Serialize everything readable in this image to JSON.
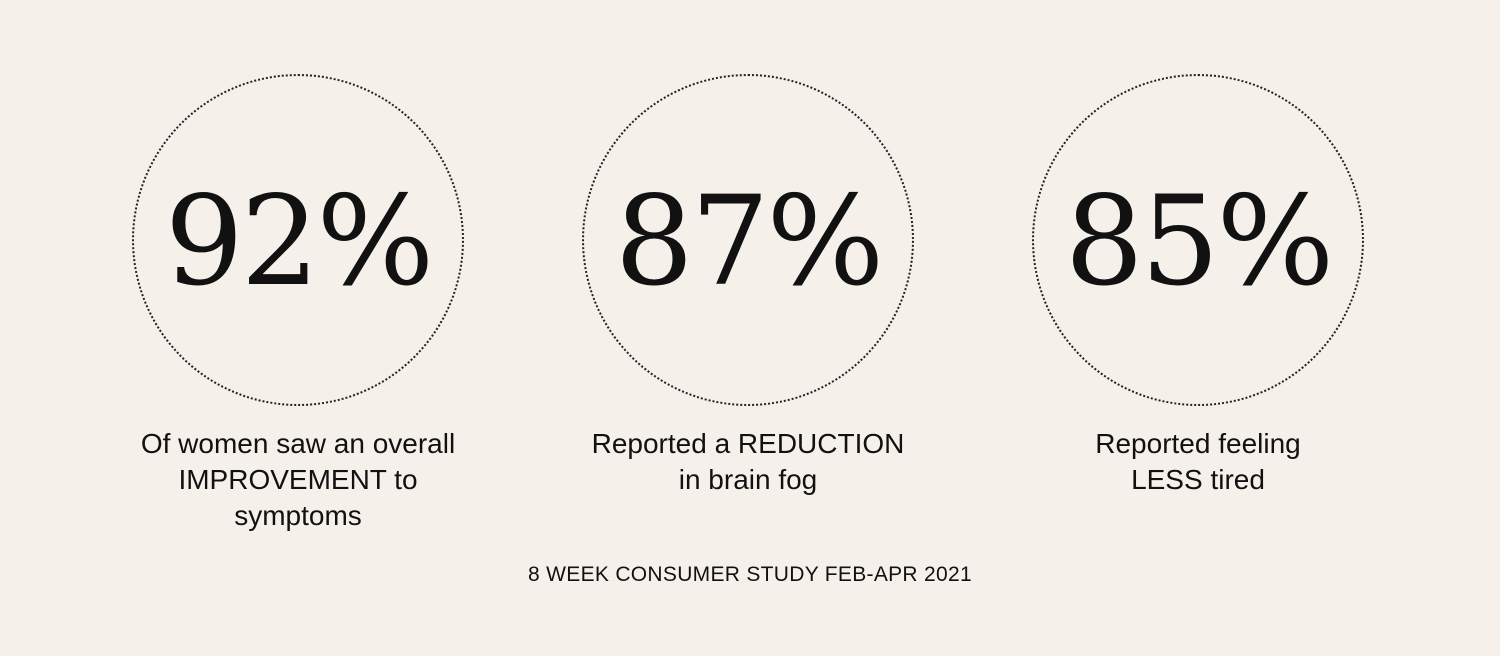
{
  "colors": {
    "background": "#f5f1ea",
    "text": "#111111",
    "circle_border": "#222222"
  },
  "stats": [
    {
      "value": "92%",
      "caption_lines": [
        "Of women saw an overall",
        "IMPROVEMENT to",
        "symptoms"
      ]
    },
    {
      "value": "87%",
      "caption_lines": [
        "Reported a REDUCTION",
        "in brain fog"
      ]
    },
    {
      "value": "85%",
      "caption_lines": [
        "Reported feeling",
        "LESS tired"
      ]
    }
  ],
  "footnote": "8 WEEK CONSUMER STUDY FEB-APR 2021"
}
